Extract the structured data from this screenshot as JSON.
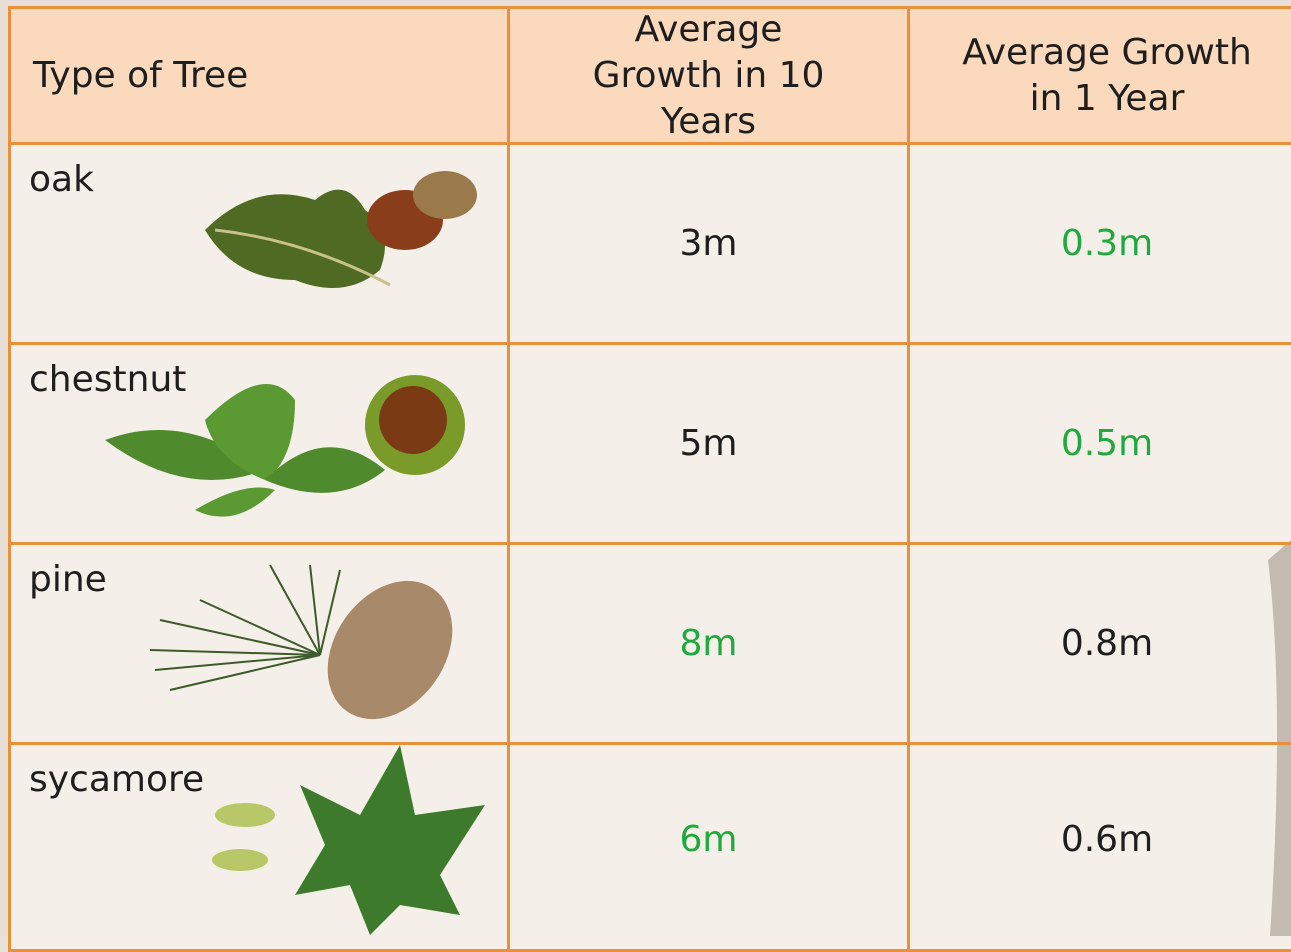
{
  "table": {
    "header": [
      "Type of Tree",
      "Average Growth in 10 Years",
      "Average Growth in 1 Year"
    ],
    "rows": [
      [
        "oak",
        "3m",
        "0.3m"
      ],
      [
        "chestnut",
        "5m",
        "0.5m"
      ],
      [
        "pine",
        "8m",
        "0.8m"
      ],
      [
        "sycamore",
        "6m",
        "0.6m"
      ]
    ]
  }
}
